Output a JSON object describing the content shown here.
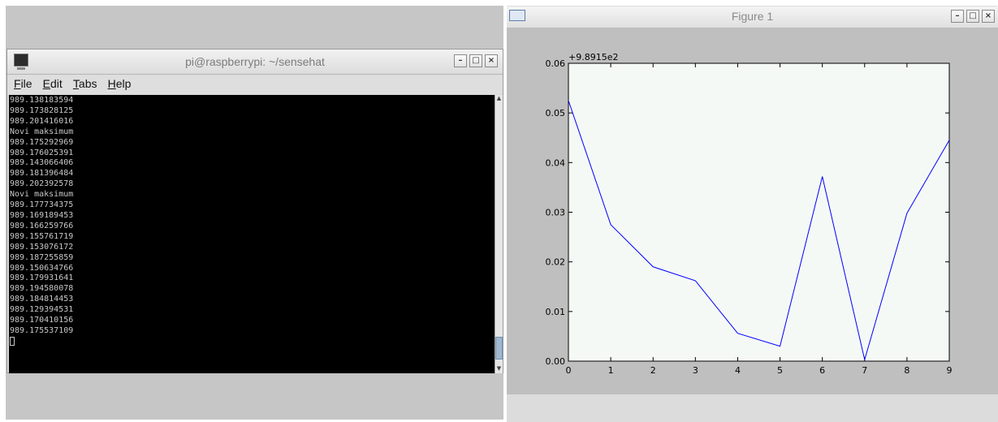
{
  "terminal": {
    "title": "pi@raspberrypi: ~/sensehat",
    "menu": [
      {
        "label": "File",
        "key": "F",
        "rest": "ile"
      },
      {
        "label": "Edit",
        "key": "E",
        "rest": "dit"
      },
      {
        "label": "Tabs",
        "key": "T",
        "rest": "abs"
      },
      {
        "label": "Help",
        "key": "H",
        "rest": "elp"
      }
    ],
    "lines": [
      "989.138183594",
      "989.173828125",
      "989.201416016",
      "Novi maksimum",
      "989.175292969",
      "989.176025391",
      "989.143066406",
      "989.181396484",
      "989.202392578",
      "Novi maksimum",
      "989.177734375",
      "989.169189453",
      "989.166259766",
      "989.155761719",
      "989.153076172",
      "989.187255859",
      "989.150634766",
      "989.179931641",
      "989.194580078",
      "989.184814453",
      "989.129394531",
      "989.170410156",
      "989.175537109"
    ],
    "window_buttons": {
      "minimize": "–",
      "maximize": "□",
      "close": "×"
    }
  },
  "figure": {
    "title": "Figure 1",
    "window_buttons": {
      "minimize": "–",
      "maximize": "□",
      "close": "×"
    },
    "offset_label": "+9.8915e2",
    "plot_bg": "#f5f9f6",
    "line_color": "#0000ff"
  },
  "chart_data": {
    "type": "line",
    "x": [
      0,
      1,
      2,
      3,
      4,
      5,
      6,
      7,
      8,
      9
    ],
    "series": [
      {
        "values": [
          0.0525,
          0.0275,
          0.019,
          0.0162,
          0.0056,
          0.003,
          0.0372,
          0.0003,
          0.0298,
          0.0445
        ]
      }
    ],
    "xlim": [
      0,
      9
    ],
    "ylim": [
      0,
      0.06
    ],
    "xticks": [
      "0",
      "1",
      "2",
      "3",
      "4",
      "5",
      "6",
      "7",
      "8",
      "9"
    ],
    "yticks": [
      "0.00",
      "0.01",
      "0.02",
      "0.03",
      "0.04",
      "0.05",
      "0.06"
    ],
    "offset_text": "+9.8915e2",
    "grid": false
  }
}
